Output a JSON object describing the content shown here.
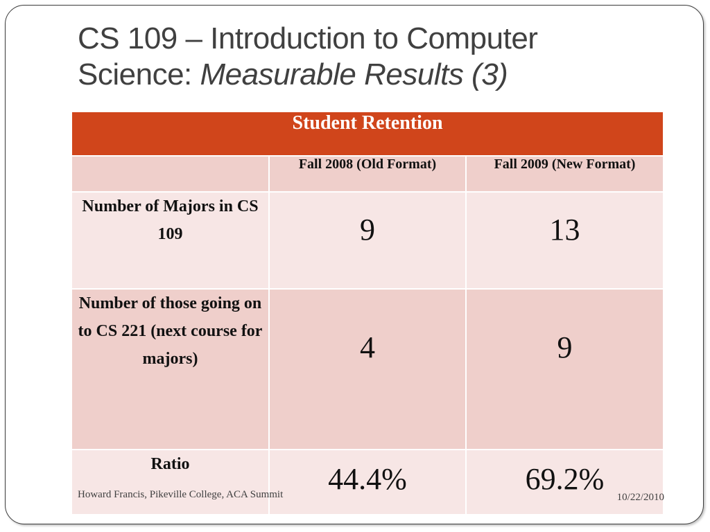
{
  "slide": {
    "title_line1": "CS 109 – Introduction to Computer",
    "title_line2_plain": "Science: ",
    "title_line2_italic": "Measurable Results (3)"
  },
  "table": {
    "header": "Student Retention",
    "columns": [
      "",
      "Fall 2008 (Old Format)",
      "Fall 2009 (New Format)"
    ],
    "rows": [
      {
        "label": "Number of Majors in CS 109",
        "fall2008": "9",
        "fall2009": "13"
      },
      {
        "label": "Number of those going on to CS 221 (next course for majors)",
        "fall2008": "4",
        "fall2009": "9"
      },
      {
        "label": "Ratio",
        "fall2008": "44.4%",
        "fall2009": "69.2%"
      }
    ]
  },
  "footer": {
    "left": "Howard Francis, Pikeville College, ACA Summit",
    "right": "10/22/2010"
  },
  "colors": {
    "header_bg": "#d0451b",
    "row_dark": "#efcfcb",
    "row_light": "#f7e6e5"
  }
}
